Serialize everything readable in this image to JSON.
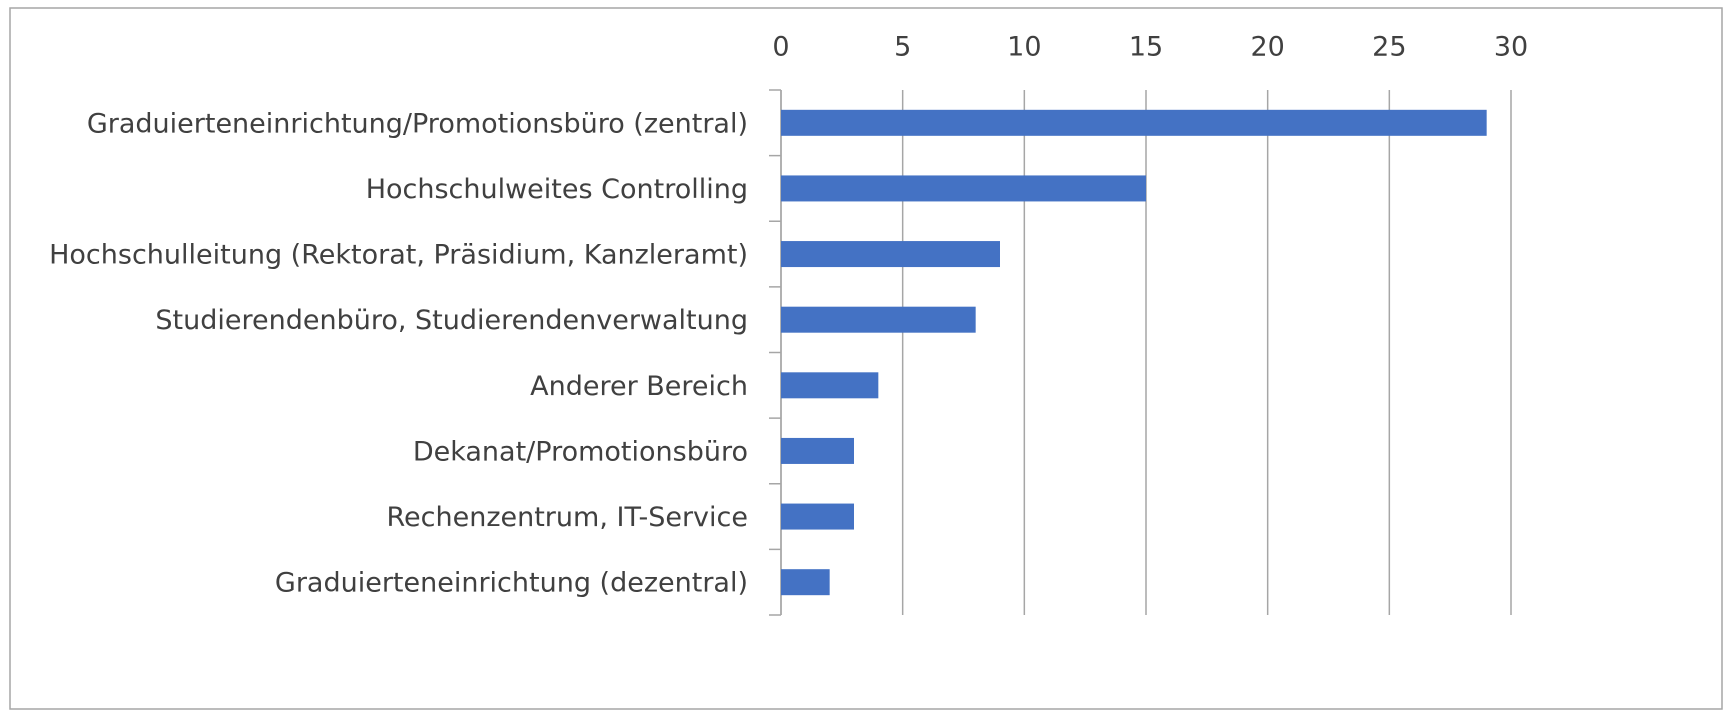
{
  "chart_data": {
    "type": "bar",
    "orientation": "horizontal",
    "categories": [
      "Graduierteneinrichtung/Promotionsbüro (zentral)",
      "Hochschulweites Controlling",
      "Hochschulleitung (Rektorat, Präsidium, Kanzleramt)",
      "Studierendenbüro, Studierendenverwaltung",
      "Anderer Bereich",
      "Dekanat/Promotionsbüro",
      "Rechenzentrum, IT-Service",
      "Graduierteneinrichtung (dezentral)"
    ],
    "values": [
      29,
      15,
      9,
      8,
      4,
      3,
      3,
      2
    ],
    "color": "#4472c4",
    "xlim": [
      0,
      30
    ],
    "xticks": [
      0,
      5,
      10,
      15,
      20,
      25,
      30
    ],
    "grid": true
  }
}
